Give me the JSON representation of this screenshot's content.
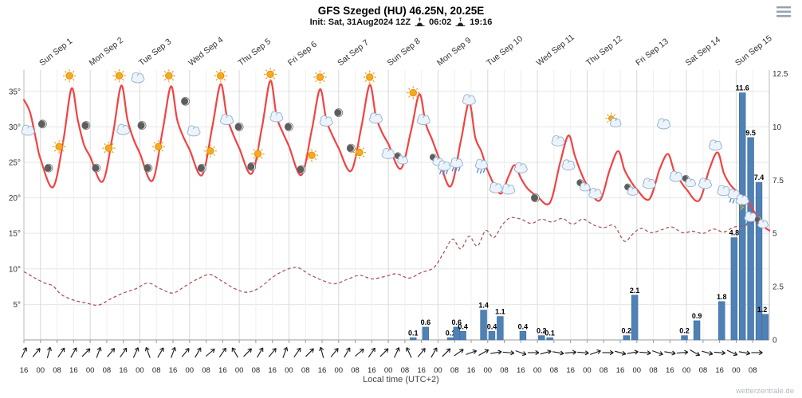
{
  "chart_data": {
    "type": "meteogram (line + bar)",
    "title": "GFS Szeged (HU) 46.25N, 20.25E",
    "init_label": "Init: Sat, 31Aug2024 12Z",
    "sunrise_time": "06:02",
    "sunset_time": "19:16",
    "xlabel": "Local time (UTC+2)",
    "watermark": "wetterzentrale.de",
    "days": [
      "Sun Sep 1",
      "Mon Sep 2",
      "Tue Sep 3",
      "Wed Sep 4",
      "Thu Sep 5",
      "Fri Sep 6",
      "Sat Sep 7",
      "Sun Sep 8",
      "Mon Sep 9",
      "Tue Sep 10",
      "Wed Sep 11",
      "Thu Sep 12",
      "Fri Sep 13",
      "Sat Sep 14",
      "Sun Sep 15"
    ],
    "temp_axis": {
      "unit": "°C",
      "range": [
        0,
        38
      ],
      "values": [
        35,
        30,
        25,
        20,
        15,
        10,
        5
      ],
      "labels": [
        "35°",
        "30°",
        "25°",
        "20°",
        "15°",
        "10°",
        "5°"
      ]
    },
    "precip_axis": {
      "unit": "mm",
      "range": [
        0,
        12.67
      ],
      "values": [
        12.5,
        10,
        7.5,
        5,
        2.5,
        0
      ],
      "labels": [
        "12.5",
        "10",
        "7.5",
        "5",
        "2.5",
        "0"
      ]
    },
    "x_ticks_cycle": [
      "16",
      "00",
      "08"
    ],
    "x_tick_hours": 8,
    "x_tick_count": 45,
    "hours_total": 360,
    "series": {
      "temperature_2m": [
        [
          0,
          33.8
        ],
        [
          3,
          32
        ],
        [
          6,
          28
        ],
        [
          8,
          25.5
        ],
        [
          14,
          21.5
        ],
        [
          19,
          28
        ],
        [
          23,
          35.4
        ],
        [
          26,
          31
        ],
        [
          29,
          27.5
        ],
        [
          32,
          25.8
        ],
        [
          38,
          22.3
        ],
        [
          43,
          29
        ],
        [
          47,
          35.8
        ],
        [
          50,
          31
        ],
        [
          53,
          28.2
        ],
        [
          56,
          26.3
        ],
        [
          62,
          22.4
        ],
        [
          67,
          29.5
        ],
        [
          71,
          35.7
        ],
        [
          74,
          31
        ],
        [
          77,
          28.6
        ],
        [
          80,
          26.8
        ],
        [
          86,
          23.2
        ],
        [
          91,
          30
        ],
        [
          95,
          36.0
        ],
        [
          98,
          31.5
        ],
        [
          101,
          29
        ],
        [
          104,
          27
        ],
        [
          110,
          23.4
        ],
        [
          115,
          30
        ],
        [
          119,
          36.5
        ],
        [
          122,
          31.5
        ],
        [
          125,
          29.2
        ],
        [
          128,
          27.3
        ],
        [
          134,
          23.2
        ],
        [
          139,
          29.5
        ],
        [
          143,
          35.3
        ],
        [
          146,
          31
        ],
        [
          149,
          28.8
        ],
        [
          152,
          27
        ],
        [
          158,
          23.8
        ],
        [
          163,
          30
        ],
        [
          167,
          35.9
        ],
        [
          170,
          31.5
        ],
        [
          173,
          29.2
        ],
        [
          176,
          27.6
        ],
        [
          182,
          24.1
        ],
        [
          187,
          29.5
        ],
        [
          191,
          34.6
        ],
        [
          194,
          30.5
        ],
        [
          197,
          28.3
        ],
        [
          200,
          26
        ],
        [
          206,
          21.6
        ],
        [
          211,
          28
        ],
        [
          215,
          33.4
        ],
        [
          218,
          28.5
        ],
        [
          221,
          26.5
        ],
        [
          224,
          23.8
        ],
        [
          230,
          20.6
        ],
        [
          234,
          23
        ],
        [
          237,
          24.6
        ],
        [
          240,
          22.8
        ],
        [
          243,
          21.4
        ],
        [
          246,
          20.6
        ],
        [
          248,
          20.2
        ],
        [
          254,
          19.3
        ],
        [
          259,
          25
        ],
        [
          263,
          28.8
        ],
        [
          266,
          26
        ],
        [
          269,
          23.6
        ],
        [
          272,
          21.8
        ],
        [
          278,
          19.6
        ],
        [
          283,
          24
        ],
        [
          287,
          26.6
        ],
        [
          290,
          24
        ],
        [
          293,
          22.4
        ],
        [
          296,
          21.2
        ],
        [
          302,
          19.8
        ],
        [
          307,
          24
        ],
        [
          311,
          26.2
        ],
        [
          314,
          23.8
        ],
        [
          317,
          22.4
        ],
        [
          320,
          21.2
        ],
        [
          326,
          19.6
        ],
        [
          331,
          24
        ],
        [
          335,
          26.4
        ],
        [
          338,
          23.5
        ],
        [
          341,
          21.9
        ],
        [
          344,
          21
        ],
        [
          347,
          20.2
        ],
        [
          350,
          19.4
        ],
        [
          352,
          18.4
        ],
        [
          354,
          17.4
        ],
        [
          356,
          16.4
        ],
        [
          358,
          15.8
        ],
        [
          360,
          15.4
        ]
      ],
      "dewpoint": [
        [
          0,
          9.6
        ],
        [
          6,
          8.6
        ],
        [
          10,
          8.0
        ],
        [
          14,
          7.6
        ],
        [
          18,
          6.4
        ],
        [
          24,
          5.6
        ],
        [
          30,
          5.2
        ],
        [
          36,
          4.9
        ],
        [
          42,
          5.8
        ],
        [
          48,
          6.6
        ],
        [
          54,
          7.2
        ],
        [
          60,
          8.0
        ],
        [
          66,
          7.2
        ],
        [
          72,
          6.6
        ],
        [
          78,
          7.6
        ],
        [
          84,
          8.6
        ],
        [
          90,
          9.2
        ],
        [
          96,
          8.2
        ],
        [
          102,
          7.2
        ],
        [
          108,
          6.7
        ],
        [
          114,
          7.4
        ],
        [
          120,
          8.8
        ],
        [
          126,
          9.8
        ],
        [
          132,
          10.2
        ],
        [
          138,
          9.2
        ],
        [
          144,
          8.4
        ],
        [
          150,
          7.9
        ],
        [
          156,
          8.5
        ],
        [
          162,
          9.1
        ],
        [
          168,
          8.6
        ],
        [
          174,
          8.9
        ],
        [
          180,
          9.3
        ],
        [
          186,
          8.7
        ],
        [
          192,
          9.5
        ],
        [
          198,
          10.2
        ],
        [
          203,
          12.4
        ],
        [
          207,
          14.2
        ],
        [
          211,
          12.8
        ],
        [
          215,
          14.6
        ],
        [
          219,
          13.2
        ],
        [
          223,
          15.4
        ],
        [
          227,
          14.4
        ],
        [
          231,
          16.2
        ],
        [
          235,
          17.2
        ],
        [
          240,
          17.0
        ],
        [
          245,
          16.4
        ],
        [
          250,
          17.0
        ],
        [
          255,
          16.6
        ],
        [
          260,
          17.1
        ],
        [
          265,
          16.3
        ],
        [
          270,
          17.0
        ],
        [
          275,
          16.2
        ],
        [
          280,
          15.8
        ],
        [
          285,
          16.1
        ],
        [
          290,
          13.9
        ],
        [
          294,
          14.9
        ],
        [
          298,
          15.7
        ],
        [
          303,
          15.1
        ],
        [
          308,
          15.5
        ],
        [
          313,
          15.9
        ],
        [
          318,
          15.1
        ],
        [
          323,
          15.3
        ],
        [
          328,
          15.0
        ],
        [
          333,
          15.6
        ],
        [
          338,
          15.2
        ],
        [
          343,
          15.9
        ],
        [
          348,
          16.1
        ],
        [
          353,
          16.5
        ],
        [
          358,
          16.3
        ]
      ],
      "precipitation": [
        [
          188,
          0.1
        ],
        [
          194,
          0.6
        ],
        [
          206,
          0.1
        ],
        [
          209,
          0.6
        ],
        [
          212,
          0.4
        ],
        [
          222,
          1.4
        ],
        [
          226,
          0.4
        ],
        [
          230,
          1.1
        ],
        [
          241,
          0.4
        ],
        [
          250,
          0.2
        ],
        [
          254,
          0.1
        ],
        [
          291,
          0.2
        ],
        [
          295,
          2.1
        ],
        [
          319,
          0.2
        ],
        [
          325,
          0.9
        ],
        [
          337,
          1.8
        ],
        [
          343,
          4.8
        ],
        [
          347,
          11.6
        ],
        [
          351,
          9.5
        ],
        [
          355,
          7.4
        ],
        [
          358,
          1.2
        ]
      ]
    },
    "weather_icons": [
      [
        2,
        29.5,
        "cloud"
      ],
      [
        9,
        30.4,
        "moon"
      ],
      [
        12,
        24.2,
        "moon"
      ],
      [
        17,
        27.2,
        "sun"
      ],
      [
        22,
        37.2,
        "sun"
      ],
      [
        30,
        30.2,
        "moon"
      ],
      [
        35,
        24.2,
        "moon"
      ],
      [
        41,
        27,
        "sun"
      ],
      [
        46,
        37.2,
        "sun"
      ],
      [
        48,
        29.6,
        "cloud"
      ],
      [
        55,
        36.9,
        "cloud"
      ],
      [
        57,
        30.2,
        "moon"
      ],
      [
        60,
        24.2,
        "moon"
      ],
      [
        65,
        27.2,
        "sun"
      ],
      [
        70,
        37.2,
        "sun"
      ],
      [
        78,
        33.6,
        "moon"
      ],
      [
        82,
        29.4,
        "cloud"
      ],
      [
        86,
        24.2,
        "moon"
      ],
      [
        90,
        26.6,
        "sun"
      ],
      [
        95,
        37.2,
        "sun"
      ],
      [
        98,
        31,
        "cloud"
      ],
      [
        104,
        30,
        "moon"
      ],
      [
        110,
        24.4,
        "moon"
      ],
      [
        113,
        26.2,
        "sun"
      ],
      [
        119,
        37.4,
        "sun"
      ],
      [
        122,
        31.4,
        "cloud"
      ],
      [
        128,
        30,
        "moon"
      ],
      [
        134,
        24,
        "moon"
      ],
      [
        139,
        26,
        "sun"
      ],
      [
        143,
        37,
        "sun"
      ],
      [
        146,
        30.8,
        "cloud"
      ],
      [
        152,
        32,
        "moon"
      ],
      [
        158,
        27,
        "moon"
      ],
      [
        162,
        26.4,
        "sun"
      ],
      [
        167,
        37,
        "sun"
      ],
      [
        170,
        31.2,
        "cloud"
      ],
      [
        176,
        26.2,
        "cloud"
      ],
      [
        182,
        25.6,
        "mooncloud"
      ],
      [
        188,
        34.8,
        "sun"
      ],
      [
        193,
        31,
        "cloud"
      ],
      [
        199,
        25.4,
        "mooncloud"
      ],
      [
        203,
        24.4,
        "rain"
      ],
      [
        209,
        24.8,
        "rain"
      ],
      [
        215,
        33.8,
        "cloud"
      ],
      [
        221,
        24.6,
        "rain"
      ],
      [
        228,
        21.4,
        "cloud"
      ],
      [
        234,
        21.2,
        "cloud"
      ],
      [
        240,
        24.2,
        "cloud"
      ],
      [
        247,
        20,
        "moon"
      ],
      [
        258,
        28,
        "cloud"
      ],
      [
        263,
        24.6,
        "cloud"
      ],
      [
        270,
        21.8,
        "mooncloud"
      ],
      [
        276,
        20.6,
        "cloud"
      ],
      [
        285,
        30.8,
        "suncloud"
      ],
      [
        293,
        21.2,
        "mooncloud"
      ],
      [
        302,
        22,
        "cloud"
      ],
      [
        309,
        30.4,
        "cloud"
      ],
      [
        315,
        23,
        "cloud"
      ],
      [
        321,
        22.4,
        "mooncloud"
      ],
      [
        329,
        22,
        "cloud"
      ],
      [
        334,
        27.4,
        "cloud"
      ],
      [
        338,
        21,
        "cloud"
      ],
      [
        343,
        20.4,
        "rain"
      ],
      [
        347,
        19.6,
        "storm"
      ],
      [
        351,
        17.2,
        "rain"
      ],
      [
        356,
        16.6,
        "mooncloud"
      ]
    ],
    "wind_step_hours": 6,
    "wind_direction_deg": [
      25,
      40,
      15,
      35,
      30,
      45,
      20,
      40,
      35,
      25,
      -20,
      30,
      20,
      40,
      30,
      50,
      35,
      -30,
      45,
      30,
      40,
      20,
      35,
      45,
      -15,
      40,
      30,
      50,
      35,
      45,
      25,
      -25,
      40,
      30,
      45,
      55,
      70,
      60,
      80,
      95,
      110,
      90,
      75,
      100,
      85,
      95,
      70,
      90,
      105,
      80,
      95,
      110,
      100,
      85,
      120,
      105,
      95,
      115,
      100,
      90
    ],
    "colors": {
      "temperature": "#f04343",
      "dewpoint": "#a64c4c",
      "precip_bar": "#4f81b5",
      "grid": "#e5e5e5",
      "sun": "#f7ab1b"
    }
  },
  "menu": {
    "icon": "hamburger-menu"
  }
}
